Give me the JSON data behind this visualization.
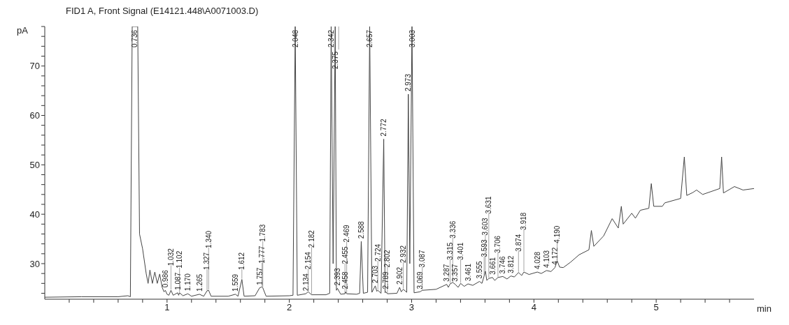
{
  "chart_data": {
    "type": "line",
    "title": "FID1 A, Front Signal (E14121.448\\A0071003.D)",
    "xlabel": "min",
    "ylabel": "pA",
    "color": "#444444",
    "x": [
      0,
      0.3,
      0.6,
      0.68,
      0.7,
      0.715,
      0.736,
      0.76,
      0.775,
      0.8,
      0.83,
      0.845,
      0.86,
      0.88,
      0.9,
      0.92,
      0.94,
      0.96,
      0.975,
      0.986,
      1.0,
      1.015,
      1.032,
      1.05,
      1.087,
      1.095,
      1.102,
      1.13,
      1.17,
      1.2,
      1.265,
      1.3,
      1.327,
      1.34,
      1.36,
      1.5,
      1.559,
      1.58,
      1.612,
      1.63,
      1.72,
      1.757,
      1.777,
      1.783,
      1.81,
      2.0,
      2.03,
      2.048,
      2.065,
      2.134,
      2.154,
      2.182,
      2.3,
      2.33,
      2.342,
      2.358,
      2.375,
      2.385,
      2.393,
      2.42,
      2.455,
      2.458,
      2.469,
      2.55,
      2.575,
      2.588,
      2.605,
      2.64,
      2.657,
      2.675,
      2.703,
      2.715,
      2.724,
      2.75,
      2.772,
      2.783,
      2.789,
      2.802,
      2.88,
      2.902,
      2.915,
      2.932,
      2.96,
      2.973,
      2.985,
      3.003,
      3.02,
      3.069,
      3.087,
      3.2,
      3.287,
      3.3,
      3.315,
      3.336,
      3.357,
      3.38,
      3.401,
      3.43,
      3.461,
      3.5,
      3.555,
      3.575,
      3.593,
      3.603,
      3.615,
      3.631,
      3.661,
      3.68,
      3.706,
      3.746,
      3.78,
      3.812,
      3.84,
      3.874,
      3.9,
      3.918,
      3.96,
      4.028,
      4.06,
      4.103,
      4.14,
      4.172,
      4.19,
      4.21,
      4.24,
      4.3,
      4.37,
      4.45,
      4.47,
      4.49,
      4.57,
      4.64,
      4.69,
      4.715,
      4.73,
      4.8,
      4.83,
      4.87,
      4.94,
      4.96,
      4.98,
      5.05,
      5.07,
      5.2,
      5.23,
      5.25,
      5.3,
      5.33,
      5.38,
      5.52,
      5.535,
      5.55,
      5.64,
      5.71,
      5.8
    ],
    "values": [
      23.2,
      23.3,
      23.3,
      23.5,
      23.3,
      78,
      78,
      78,
      36,
      33,
      27.9,
      26,
      28.7,
      26,
      28.3,
      26,
      27.9,
      25.2,
      24.3,
      24.6,
      23.8,
      23.6,
      24.6,
      23.6,
      24.1,
      23.6,
      24.1,
      23.5,
      23.9,
      23.4,
      23.8,
      23.4,
      24.5,
      24.6,
      23.4,
      23.4,
      23.8,
      23.4,
      26.8,
      23.4,
      23.5,
      25.1,
      25.3,
      25.1,
      23.4,
      23.5,
      23.6,
      78,
      23.6,
      23.9,
      24.3,
      23.7,
      23.7,
      24,
      78,
      30,
      78,
      24.6,
      25,
      23.8,
      23.9,
      24.3,
      23.9,
      23.8,
      24,
      34.5,
      24,
      24.2,
      78,
      24.2,
      25.5,
      24.4,
      24.6,
      24,
      55.2,
      24.1,
      24.3,
      23.9,
      24,
      25.2,
      24.3,
      24.8,
      24.2,
      64.3,
      30,
      78,
      24.1,
      24.3,
      24.6,
      24.8,
      25.8,
      25.2,
      25.9,
      26.2,
      25.8,
      25.2,
      26,
      25.4,
      25.9,
      25.6,
      26.4,
      26,
      27.5,
      28.5,
      26.6,
      27,
      27.2,
      26.6,
      27.2,
      27.4,
      26.9,
      27.5,
      27.3,
      28.2,
      27.6,
      28.3,
      27.8,
      28.3,
      28,
      28.6,
      28.4,
      29.2,
      30.6,
      29.3,
      29.2,
      30.3,
      31.8,
      32.8,
      36.7,
      33.5,
      35.6,
      39.1,
      37.2,
      41.6,
      38,
      40.2,
      39.2,
      40.8,
      41.2,
      46.2,
      41.6,
      41.6,
      42.3,
      43.2,
      51.6,
      43.8,
      44.4,
      44.9,
      44,
      45.2,
      51.6,
      44.3,
      45.6,
      44.9,
      45.2
    ],
    "xlim": [
      0,
      5.8
    ],
    "ylim": [
      22.8,
      78
    ],
    "xticks": [
      {
        "value": 0.2,
        "label": null
      },
      {
        "value": 0.4,
        "label": null
      },
      {
        "value": 0.6,
        "label": null
      },
      {
        "value": 0.8,
        "label": null
      },
      1,
      {
        "value": 1.2,
        "label": null
      },
      {
        "value": 1.4,
        "label": null
      },
      {
        "value": 1.6,
        "label": null
      },
      {
        "value": 1.8,
        "label": null
      },
      2,
      {
        "value": 2.2,
        "label": null
      },
      {
        "value": 2.4,
        "label": null
      },
      {
        "value": 2.6,
        "label": null
      },
      {
        "value": 2.8,
        "label": null
      },
      3,
      {
        "value": 3.2,
        "label": null
      },
      {
        "value": 3.4,
        "label": null
      },
      {
        "value": 3.6,
        "label": null
      },
      {
        "value": 3.8,
        "label": null
      },
      4,
      {
        "value": 4.2,
        "label": null
      },
      {
        "value": 4.4,
        "label": null
      },
      {
        "value": 4.6,
        "label": null
      },
      {
        "value": 4.8,
        "label": null
      },
      5,
      {
        "value": 5.2,
        "label": null
      },
      {
        "value": 5.4,
        "label": null
      },
      {
        "value": 5.6,
        "label": null
      }
    ],
    "yticks": [
      {
        "value": 24,
        "label": null
      },
      {
        "value": 26,
        "label": null
      },
      {
        "value": 28,
        "label": null
      },
      30,
      {
        "value": 32,
        "label": null
      },
      {
        "value": 34,
        "label": null
      },
      {
        "value": 36,
        "label": null
      },
      {
        "value": 38,
        "label": null
      },
      40,
      {
        "value": 42,
        "label": null
      },
      {
        "value": 44,
        "label": null
      },
      {
        "value": 46,
        "label": null
      },
      {
        "value": 48,
        "label": null
      },
      50,
      {
        "value": 52,
        "label": null
      },
      {
        "value": 54,
        "label": null
      },
      {
        "value": 56,
        "label": null
      },
      {
        "value": 58,
        "label": null
      },
      60,
      {
        "value": 62,
        "label": null
      },
      {
        "value": 64,
        "label": null
      },
      {
        "value": 66,
        "label": null
      },
      {
        "value": 68,
        "label": null
      },
      70,
      {
        "value": 72,
        "label": null
      },
      {
        "value": 74,
        "label": null
      },
      {
        "value": 76,
        "label": null
      },
      {
        "value": 78,
        "label": null
      }
    ],
    "annotations": [
      {
        "text": "0.736",
        "x": 0.736,
        "y": 78
      },
      {
        "text": "0.986",
        "x": 0.986,
        "y": 24.6
      },
      {
        "text": "1.032",
        "x": 1.032,
        "y": 24.6
      },
      {
        "text": "1.087",
        "x": 1.087,
        "y": 24.1
      },
      {
        "text": "1.102",
        "x": 1.102,
        "y": 24.1
      },
      {
        "text": "1.170",
        "x": 1.17,
        "y": 23.9
      },
      {
        "text": "1.265",
        "x": 1.265,
        "y": 23.8
      },
      {
        "text": "1.327",
        "x": 1.327,
        "y": 24.5
      },
      {
        "text": "1.340",
        "x": 1.34,
        "y": 24.6
      },
      {
        "text": "1.559",
        "x": 1.559,
        "y": 23.8
      },
      {
        "text": "1.612",
        "x": 1.612,
        "y": 26.8
      },
      {
        "text": "1.757",
        "x": 1.757,
        "y": 25.1
      },
      {
        "text": "1.777",
        "x": 1.777,
        "y": 25.3
      },
      {
        "text": "1.783",
        "x": 1.783,
        "y": 25.1
      },
      {
        "text": "2.048",
        "x": 2.048,
        "y": 78
      },
      {
        "text": "2.134",
        "x": 2.134,
        "y": 23.9
      },
      {
        "text": "2.154",
        "x": 2.154,
        "y": 24.3
      },
      {
        "text": "2.182",
        "x": 2.182,
        "y": 23.7
      },
      {
        "text": "2.342",
        "x": 2.342,
        "y": 78
      },
      {
        "text": "2.375",
        "x": 2.375,
        "y": 78
      },
      {
        "text": "2.393",
        "x": 2.393,
        "y": 25
      },
      {
        "text": "2.455",
        "x": 2.455,
        "y": 23.9
      },
      {
        "text": "2.458",
        "x": 2.458,
        "y": 24.3
      },
      {
        "text": "2.469",
        "x": 2.469,
        "y": 23.9
      },
      {
        "text": "2.588",
        "x": 2.588,
        "y": 34.5
      },
      {
        "text": "2.657",
        "x": 2.657,
        "y": 78
      },
      {
        "text": "2.703",
        "x": 2.703,
        "y": 25.5
      },
      {
        "text": "2.724",
        "x": 2.724,
        "y": 24.6
      },
      {
        "text": "2.772",
        "x": 2.772,
        "y": 55.2
      },
      {
        "text": "2.789",
        "x": 2.789,
        "y": 24.3
      },
      {
        "text": "2.802",
        "x": 2.802,
        "y": 23.9
      },
      {
        "text": "2.902",
        "x": 2.902,
        "y": 25.2
      },
      {
        "text": "2.932",
        "x": 2.932,
        "y": 24.8
      },
      {
        "text": "2.973",
        "x": 2.973,
        "y": 64.3
      },
      {
        "text": "3.003",
        "x": 3.003,
        "y": 78
      },
      {
        "text": "3.069",
        "x": 3.069,
        "y": 24.3
      },
      {
        "text": "3.087",
        "x": 3.087,
        "y": 24.6
      },
      {
        "text": "3.287",
        "x": 3.287,
        "y": 25.8
      },
      {
        "text": "3.315",
        "x": 3.315,
        "y": 25.9
      },
      {
        "text": "3.336",
        "x": 3.336,
        "y": 26.2
      },
      {
        "text": "3.357",
        "x": 3.357,
        "y": 25.8
      },
      {
        "text": "3.401",
        "x": 3.401,
        "y": 26
      },
      {
        "text": "3.461",
        "x": 3.461,
        "y": 25.9
      },
      {
        "text": "3.555",
        "x": 3.555,
        "y": 26.4
      },
      {
        "text": "3.593",
        "x": 3.593,
        "y": 27.5
      },
      {
        "text": "3.603",
        "x": 3.603,
        "y": 28.5
      },
      {
        "text": "3.631",
        "x": 3.631,
        "y": 27
      },
      {
        "text": "3.661",
        "x": 3.661,
        "y": 27.2
      },
      {
        "text": "3.706",
        "x": 3.706,
        "y": 27.2
      },
      {
        "text": "3.746",
        "x": 3.746,
        "y": 27.4
      },
      {
        "text": "3.812",
        "x": 3.812,
        "y": 27.5
      },
      {
        "text": "3.874",
        "x": 3.874,
        "y": 28.2
      },
      {
        "text": "3.918",
        "x": 3.918,
        "y": 28.3
      },
      {
        "text": "4.028",
        "x": 4.028,
        "y": 28.3
      },
      {
        "text": "4.103",
        "x": 4.103,
        "y": 28.6
      },
      {
        "text": "4.172",
        "x": 4.172,
        "y": 29.2
      },
      {
        "text": "4.190",
        "x": 4.19,
        "y": 30.6
      }
    ]
  }
}
